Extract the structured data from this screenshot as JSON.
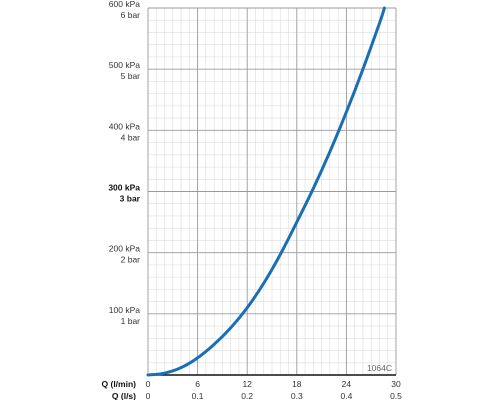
{
  "chart_data": {
    "type": "line",
    "title": "",
    "figure_code": "1064C",
    "x_primary": {
      "label": "Q (l/min)",
      "range": [
        0,
        30
      ],
      "ticks": [
        "0",
        "6",
        "12",
        "18",
        "24",
        "30"
      ]
    },
    "x_secondary": {
      "label": "Q (l/s)",
      "range": [
        0,
        0.5
      ],
      "ticks": [
        "0",
        "0.1",
        "0.2",
        "0.3",
        "0.4",
        "0.5"
      ]
    },
    "y": {
      "range": [
        0,
        600
      ],
      "unit": "kPa",
      "ticks": [
        {
          "kpa": "100 kPa",
          "bar": "1 bar",
          "emphasis": false
        },
        {
          "kpa": "200 kPa",
          "bar": "2 bar",
          "emphasis": false
        },
        {
          "kpa": "300 kPa",
          "bar": "3 bar",
          "emphasis": true
        },
        {
          "kpa": "400 kPa",
          "bar": "4 bar",
          "emphasis": false
        },
        {
          "kpa": "500 kPa",
          "bar": "5 bar",
          "emphasis": false
        },
        {
          "kpa": "600 kPa",
          "bar": "6 bar",
          "emphasis": false
        }
      ]
    },
    "grid": true,
    "series": [
      {
        "color": "#1a6fb4",
        "x": [
          0,
          2,
          4,
          6,
          8,
          10,
          12,
          14,
          16,
          18,
          20,
          22,
          24,
          26,
          28,
          28.6
        ],
        "y": [
          0,
          3,
          12,
          28,
          50,
          77,
          110,
          150,
          197,
          250,
          305,
          365,
          430,
          500,
          575,
          600
        ]
      }
    ]
  }
}
